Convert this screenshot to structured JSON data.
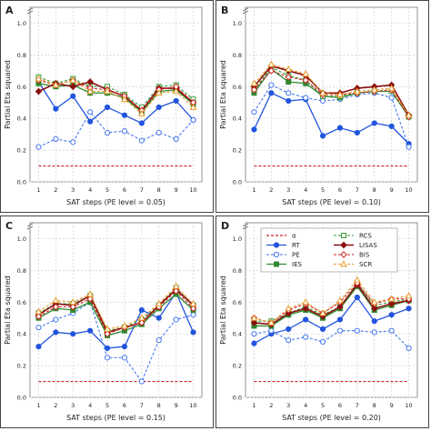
{
  "figure": {
    "background": "#ffffff"
  },
  "chart_data": [
    {
      "type": "line",
      "panel_label": "A",
      "xlabel": "SAT steps (PE level = 0.05)",
      "ylabel": "Partial Eta squared",
      "x": [
        1,
        2,
        3,
        4,
        5,
        6,
        7,
        8,
        9,
        10
      ],
      "xticks": [
        "1",
        "2",
        "3",
        "4",
        "5",
        "6",
        "7",
        "8",
        "9",
        "10"
      ],
      "ylim": [
        0,
        1.1
      ],
      "yticks": [
        "0.0",
        "0.2",
        "0.4",
        "0.6",
        "0.8",
        "1.0"
      ],
      "grid": true,
      "legend": false,
      "series": [
        {
          "key": "alpha",
          "values": [
            0.1,
            0.1,
            0.1,
            0.1,
            0.1,
            0.1,
            0.1,
            0.1,
            0.1,
            0.1
          ]
        },
        {
          "key": "RT",
          "values": [
            0.63,
            0.46,
            0.54,
            0.38,
            0.47,
            0.42,
            0.37,
            0.47,
            0.51,
            0.39
          ]
        },
        {
          "key": "PE",
          "values": [
            0.22,
            0.27,
            0.25,
            0.44,
            0.31,
            0.32,
            0.26,
            0.31,
            0.27,
            0.39
          ]
        },
        {
          "key": "IES",
          "values": [
            0.62,
            0.6,
            0.61,
            0.56,
            0.56,
            0.53,
            0.44,
            0.57,
            0.58,
            0.49
          ]
        },
        {
          "key": "RCS",
          "values": [
            0.66,
            0.62,
            0.65,
            0.6,
            0.6,
            0.55,
            0.47,
            0.6,
            0.61,
            0.52
          ]
        },
        {
          "key": "LISAS",
          "values": [
            0.57,
            0.62,
            0.6,
            0.63,
            0.58,
            0.54,
            0.45,
            0.59,
            0.59,
            0.5
          ]
        },
        {
          "key": "BIS",
          "values": [
            0.64,
            0.61,
            0.64,
            0.59,
            0.58,
            0.54,
            0.45,
            0.58,
            0.6,
            0.5
          ]
        },
        {
          "key": "SCR",
          "values": [
            0.65,
            0.61,
            0.64,
            0.57,
            0.57,
            0.52,
            0.43,
            0.56,
            0.57,
            0.47
          ]
        }
      ]
    },
    {
      "type": "line",
      "panel_label": "B",
      "xlabel": "SAT steps (PE level = 0.10)",
      "ylabel": "Partial Eta squared",
      "x": [
        1,
        2,
        3,
        4,
        5,
        6,
        7,
        8,
        9,
        10
      ],
      "xticks": [
        "1",
        "2",
        "3",
        "4",
        "5",
        "6",
        "7",
        "8",
        "9",
        "10"
      ],
      "ylim": [
        0,
        1.1
      ],
      "yticks": [
        "0.0",
        "0.2",
        "0.4",
        "0.6",
        "0.8",
        "1.0"
      ],
      "grid": true,
      "legend": false,
      "series": [
        {
          "key": "alpha",
          "values": [
            0.1,
            0.1,
            0.1,
            0.1,
            0.1,
            0.1,
            0.1,
            0.1,
            0.1,
            0.1
          ]
        },
        {
          "key": "RT",
          "values": [
            0.33,
            0.56,
            0.51,
            0.52,
            0.29,
            0.34,
            0.31,
            0.37,
            0.35,
            0.24
          ]
        },
        {
          "key": "PE",
          "values": [
            0.44,
            0.61,
            0.56,
            0.53,
            0.51,
            0.52,
            0.55,
            0.56,
            0.53,
            0.22
          ]
        },
        {
          "key": "IES",
          "values": [
            0.56,
            0.71,
            0.63,
            0.62,
            0.54,
            0.53,
            0.56,
            0.57,
            0.57,
            0.41
          ]
        },
        {
          "key": "RCS",
          "values": [
            0.58,
            0.72,
            0.67,
            0.64,
            0.54,
            0.54,
            0.56,
            0.57,
            0.57,
            0.41
          ]
        },
        {
          "key": "LISAS",
          "values": [
            0.6,
            0.73,
            0.7,
            0.67,
            0.56,
            0.56,
            0.59,
            0.6,
            0.61,
            0.42
          ]
        },
        {
          "key": "BIS",
          "values": [
            0.58,
            0.7,
            0.66,
            0.64,
            0.55,
            0.55,
            0.56,
            0.57,
            0.58,
            0.41
          ]
        },
        {
          "key": "SCR",
          "values": [
            0.62,
            0.74,
            0.71,
            0.68,
            0.56,
            0.55,
            0.57,
            0.58,
            0.59,
            0.42
          ]
        }
      ]
    },
    {
      "type": "line",
      "panel_label": "C",
      "xlabel": "SAT steps (PE level = 0.15)",
      "ylabel": "Partial Eta squared",
      "x": [
        1,
        2,
        3,
        4,
        5,
        6,
        7,
        8,
        9,
        10
      ],
      "xticks": [
        "1",
        "2",
        "3",
        "4",
        "5",
        "6",
        "7",
        "8",
        "9",
        "10"
      ],
      "ylim": [
        0,
        1.1
      ],
      "yticks": [
        "0.0",
        "0.2",
        "0.4",
        "0.6",
        "0.8",
        "1.0"
      ],
      "grid": true,
      "legend": false,
      "series": [
        {
          "key": "alpha",
          "values": [
            0.1,
            0.1,
            0.1,
            0.1,
            0.1,
            0.1,
            0.1,
            0.1,
            0.1,
            0.1
          ]
        },
        {
          "key": "RT",
          "values": [
            0.32,
            0.41,
            0.4,
            0.42,
            0.31,
            0.32,
            0.55,
            0.5,
            0.66,
            0.41
          ]
        },
        {
          "key": "PE",
          "values": [
            0.44,
            0.49,
            0.53,
            0.6,
            0.25,
            0.25,
            0.1,
            0.36,
            0.49,
            0.52
          ]
        },
        {
          "key": "IES",
          "values": [
            0.5,
            0.56,
            0.55,
            0.6,
            0.39,
            0.42,
            0.46,
            0.56,
            0.65,
            0.55
          ]
        },
        {
          "key": "RCS",
          "values": [
            0.53,
            0.59,
            0.59,
            0.64,
            0.42,
            0.44,
            0.49,
            0.58,
            0.69,
            0.58
          ]
        },
        {
          "key": "LISAS",
          "values": [
            0.52,
            0.59,
            0.58,
            0.64,
            0.41,
            0.44,
            0.47,
            0.58,
            0.68,
            0.58
          ]
        },
        {
          "key": "BIS",
          "values": [
            0.51,
            0.57,
            0.57,
            0.62,
            0.4,
            0.44,
            0.47,
            0.57,
            0.67,
            0.56
          ]
        },
        {
          "key": "SCR",
          "values": [
            0.54,
            0.61,
            0.6,
            0.65,
            0.43,
            0.45,
            0.5,
            0.59,
            0.7,
            0.59
          ]
        }
      ]
    },
    {
      "type": "line",
      "panel_label": "D",
      "xlabel": "SAT steps (PE level = 0.20)",
      "ylabel": "Partial Eta squared",
      "x": [
        1,
        2,
        3,
        4,
        5,
        6,
        7,
        8,
        9,
        10
      ],
      "xticks": [
        "1",
        "2",
        "3",
        "4",
        "5",
        "6",
        "7",
        "8",
        "9",
        "10"
      ],
      "ylim": [
        0,
        1.1
      ],
      "yticks": [
        "0.0",
        "0.2",
        "0.4",
        "0.6",
        "0.8",
        "1.0"
      ],
      "grid": true,
      "legend": true,
      "legend_position": "top-left",
      "series": [
        {
          "key": "alpha",
          "values": [
            0.1,
            0.1,
            0.1,
            0.1,
            0.1,
            0.1,
            0.1,
            0.1,
            0.1,
            0.1
          ]
        },
        {
          "key": "RT",
          "values": [
            0.34,
            0.4,
            0.43,
            0.49,
            0.43,
            0.49,
            0.63,
            0.48,
            0.52,
            0.56
          ]
        },
        {
          "key": "PE",
          "values": [
            0.4,
            0.42,
            0.36,
            0.38,
            0.35,
            0.42,
            0.42,
            0.41,
            0.42,
            0.31
          ]
        },
        {
          "key": "IES",
          "values": [
            0.45,
            0.45,
            0.52,
            0.55,
            0.5,
            0.56,
            0.7,
            0.55,
            0.58,
            0.61
          ]
        },
        {
          "key": "RCS",
          "values": [
            0.48,
            0.48,
            0.53,
            0.57,
            0.52,
            0.57,
            0.72,
            0.58,
            0.6,
            0.62
          ]
        },
        {
          "key": "LISAS",
          "values": [
            0.47,
            0.46,
            0.53,
            0.56,
            0.51,
            0.57,
            0.71,
            0.56,
            0.59,
            0.61
          ]
        },
        {
          "key": "BIS",
          "values": [
            0.5,
            0.47,
            0.55,
            0.59,
            0.53,
            0.6,
            0.72,
            0.59,
            0.62,
            0.62
          ]
        },
        {
          "key": "SCR",
          "values": [
            0.5,
            0.47,
            0.56,
            0.6,
            0.53,
            0.61,
            0.74,
            0.6,
            0.62,
            0.64
          ]
        }
      ]
    }
  ],
  "legend": {
    "col1": [
      {
        "key": "alpha",
        "label": "α"
      },
      {
        "key": "RT",
        "label": "RT"
      },
      {
        "key": "PE",
        "label": "PE"
      },
      {
        "key": "IES",
        "label": "IES"
      }
    ],
    "col2": [
      {
        "key": "RCS",
        "label": "RCS"
      },
      {
        "key": "LISAS",
        "label": "LISAS"
      },
      {
        "key": "BIS",
        "label": "BIS"
      },
      {
        "key": "SCR",
        "label": "SCR"
      }
    ]
  },
  "styles": {
    "alpha": {
      "color": "#cc2222",
      "dash": "3,2",
      "marker": "none",
      "filled": false,
      "width": 1.2
    },
    "RT": {
      "color": "#2255dd",
      "dash": "",
      "marker": "circle",
      "filled": true,
      "width": 1.3
    },
    "PE": {
      "color": "#4477ee",
      "dash": "3,2",
      "marker": "circle",
      "filled": false,
      "width": 1.1
    },
    "IES": {
      "color": "#2f8a2f",
      "dash": "",
      "marker": "square",
      "filled": true,
      "width": 1.3
    },
    "RCS": {
      "color": "#3a9a3a",
      "dash": "3,2",
      "marker": "square",
      "filled": false,
      "width": 1.1
    },
    "LISAS": {
      "color": "#8b1010",
      "dash": "",
      "marker": "diamond",
      "filled": true,
      "width": 1.6
    },
    "BIS": {
      "color": "#cc2222",
      "dash": "3,2",
      "marker": "diamond",
      "filled": false,
      "width": 1.1
    },
    "SCR": {
      "color": "#e89a2a",
      "dash": "3,2",
      "marker": "triangle",
      "filled": false,
      "width": 1.1
    }
  }
}
